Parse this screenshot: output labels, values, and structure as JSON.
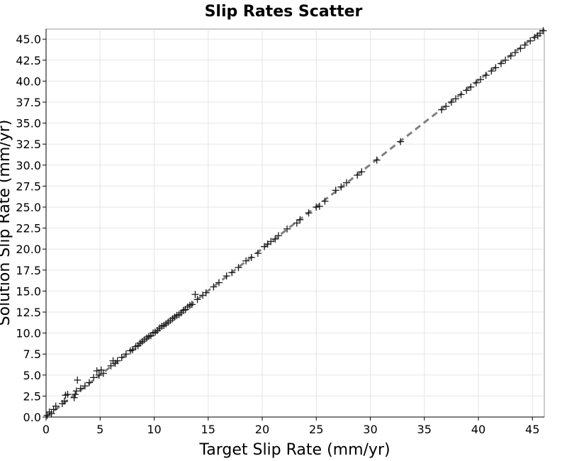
{
  "chart_data": {
    "type": "scatter",
    "title": "Slip Rates Scatter",
    "xlabel": "Target Slip Rate (mm/yr)",
    "ylabel": "Solution Slip Rate (mm/yr)",
    "xlim": [
      0,
      46.1
    ],
    "ylim": [
      0,
      46.2
    ],
    "x_ticks": [
      "0",
      "5",
      "10",
      "15",
      "20",
      "25",
      "30",
      "35",
      "40",
      "45"
    ],
    "y_ticks": [
      "0.0",
      "2.5",
      "5.0",
      "7.5",
      "10.0",
      "12.5",
      "15.0",
      "17.5",
      "20.0",
      "22.5",
      "25.0",
      "27.5",
      "30.0",
      "32.5",
      "35.0",
      "37.5",
      "40.0",
      "42.5",
      "45.0"
    ],
    "grid": true,
    "marker": "plus",
    "reference_line": {
      "style": "dashed",
      "color": "#808080",
      "x": [
        0,
        46.1
      ],
      "y": [
        0,
        46.2
      ]
    },
    "series": [
      {
        "points": [
          [
            0.1,
            0.2
          ],
          [
            0.3,
            0.6
          ],
          [
            0.5,
            0.4
          ],
          [
            0.7,
            0.9
          ],
          [
            0.9,
            1.3
          ],
          [
            1.5,
            1.6
          ],
          [
            1.7,
            1.9
          ],
          [
            1.8,
            2.6
          ],
          [
            2.0,
            2.7
          ],
          [
            2.6,
            2.3
          ],
          [
            2.7,
            2.7
          ],
          [
            2.8,
            3.1
          ],
          [
            2.9,
            4.4
          ],
          [
            3.2,
            3.4
          ],
          [
            3.6,
            3.7
          ],
          [
            4.0,
            4.1
          ],
          [
            4.4,
            4.7
          ],
          [
            4.7,
            5.5
          ],
          [
            4.9,
            5.0
          ],
          [
            5.1,
            5.6
          ],
          [
            5.3,
            5.2
          ],
          [
            6.0,
            6.1
          ],
          [
            6.2,
            6.7
          ],
          [
            6.4,
            6.4
          ],
          [
            6.6,
            6.7
          ],
          [
            7.0,
            7.1
          ],
          [
            7.4,
            7.5
          ],
          [
            7.8,
            7.9
          ],
          [
            8.0,
            8.0
          ],
          [
            8.3,
            8.4
          ],
          [
            8.5,
            8.5
          ],
          [
            8.7,
            8.8
          ],
          [
            8.9,
            9.0
          ],
          [
            9.1,
            9.2
          ],
          [
            9.3,
            9.4
          ],
          [
            9.5,
            9.6
          ],
          [
            9.7,
            9.7
          ],
          [
            9.9,
            10.0
          ],
          [
            10.1,
            10.1
          ],
          [
            10.3,
            10.3
          ],
          [
            10.5,
            10.6
          ],
          [
            10.7,
            10.8
          ],
          [
            10.9,
            10.9
          ],
          [
            11.1,
            11.1
          ],
          [
            11.3,
            11.3
          ],
          [
            11.5,
            11.5
          ],
          [
            11.7,
            11.7
          ],
          [
            11.9,
            11.9
          ],
          [
            12.1,
            12.1
          ],
          [
            12.3,
            12.2
          ],
          [
            12.5,
            12.4
          ],
          [
            12.7,
            12.7
          ],
          [
            12.9,
            12.8
          ],
          [
            13.1,
            13.1
          ],
          [
            13.3,
            13.3
          ],
          [
            13.5,
            13.4
          ],
          [
            13.8,
            14.6
          ],
          [
            14.0,
            14.0
          ],
          [
            14.5,
            14.5
          ],
          [
            14.8,
            14.8
          ],
          [
            15.5,
            15.5
          ],
          [
            16.0,
            16.0
          ],
          [
            16.7,
            16.8
          ],
          [
            17.2,
            17.2
          ],
          [
            17.8,
            17.8
          ],
          [
            18.5,
            18.6
          ],
          [
            19.0,
            19.0
          ],
          [
            19.6,
            19.5
          ],
          [
            20.2,
            20.3
          ],
          [
            20.5,
            20.6
          ],
          [
            20.8,
            20.9
          ],
          [
            21.2,
            21.2
          ],
          [
            21.5,
            21.6
          ],
          [
            22.3,
            22.4
          ],
          [
            23.2,
            23.1
          ],
          [
            23.5,
            23.5
          ],
          [
            24.3,
            24.3
          ],
          [
            25.0,
            25.0
          ],
          [
            25.3,
            25.1
          ],
          [
            25.8,
            25.7
          ],
          [
            26.8,
            27.0
          ],
          [
            27.3,
            27.4
          ],
          [
            27.8,
            27.9
          ],
          [
            28.8,
            28.8
          ],
          [
            29.2,
            29.2
          ],
          [
            30.6,
            30.6
          ],
          [
            32.8,
            32.8
          ],
          [
            36.6,
            36.6
          ],
          [
            37.0,
            37.0
          ],
          [
            37.5,
            37.5
          ],
          [
            37.9,
            37.9
          ],
          [
            38.4,
            38.4
          ],
          [
            38.9,
            38.9
          ],
          [
            39.3,
            39.3
          ],
          [
            39.8,
            39.8
          ],
          [
            40.2,
            40.2
          ],
          [
            40.7,
            40.7
          ],
          [
            41.2,
            41.2
          ],
          [
            41.6,
            41.6
          ],
          [
            42.1,
            42.1
          ],
          [
            42.5,
            42.5
          ],
          [
            43.0,
            43.0
          ],
          [
            43.4,
            43.4
          ],
          [
            43.9,
            43.9
          ],
          [
            44.3,
            44.3
          ],
          [
            44.8,
            44.8
          ],
          [
            45.2,
            45.2
          ],
          [
            45.5,
            45.4
          ],
          [
            45.7,
            45.7
          ],
          [
            46.0,
            46.0
          ]
        ]
      }
    ]
  }
}
